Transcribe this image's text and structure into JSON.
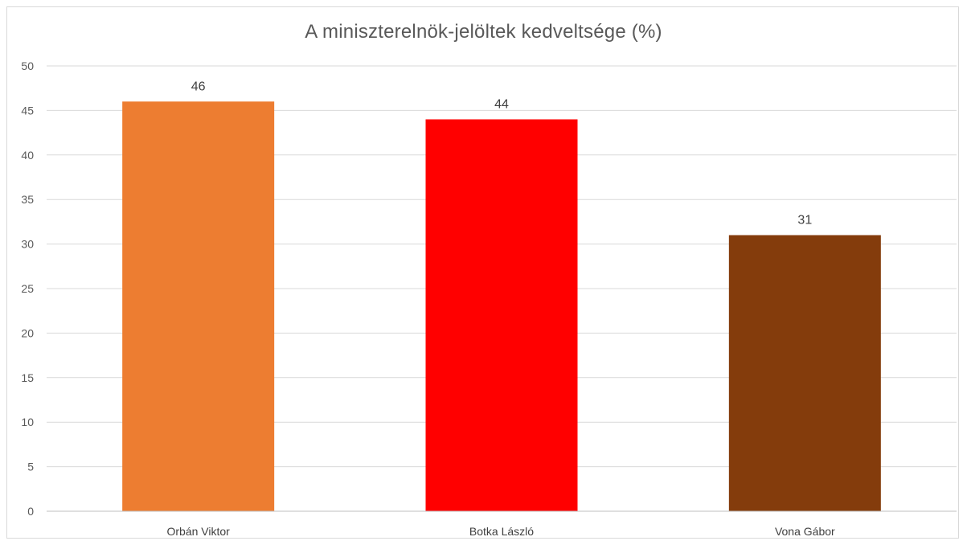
{
  "chart_data": {
    "type": "bar",
    "title": "A miniszterelnök-jelöltek  kedveltsége  (%)",
    "xlabel": "",
    "ylabel": "",
    "categories": [
      "Orbán Viktor",
      "Botka László",
      "Vona Gábor"
    ],
    "values": [
      46,
      44,
      31
    ],
    "data_labels": [
      "46",
      "44",
      "31"
    ],
    "bar_colors": [
      "#ED7D31",
      "#FF0000",
      "#843C0C"
    ],
    "ylim": [
      0,
      50
    ],
    "yticks": [
      0,
      5,
      10,
      15,
      20,
      25,
      30,
      35,
      40,
      45,
      50
    ],
    "grid": true,
    "legend": "none"
  }
}
